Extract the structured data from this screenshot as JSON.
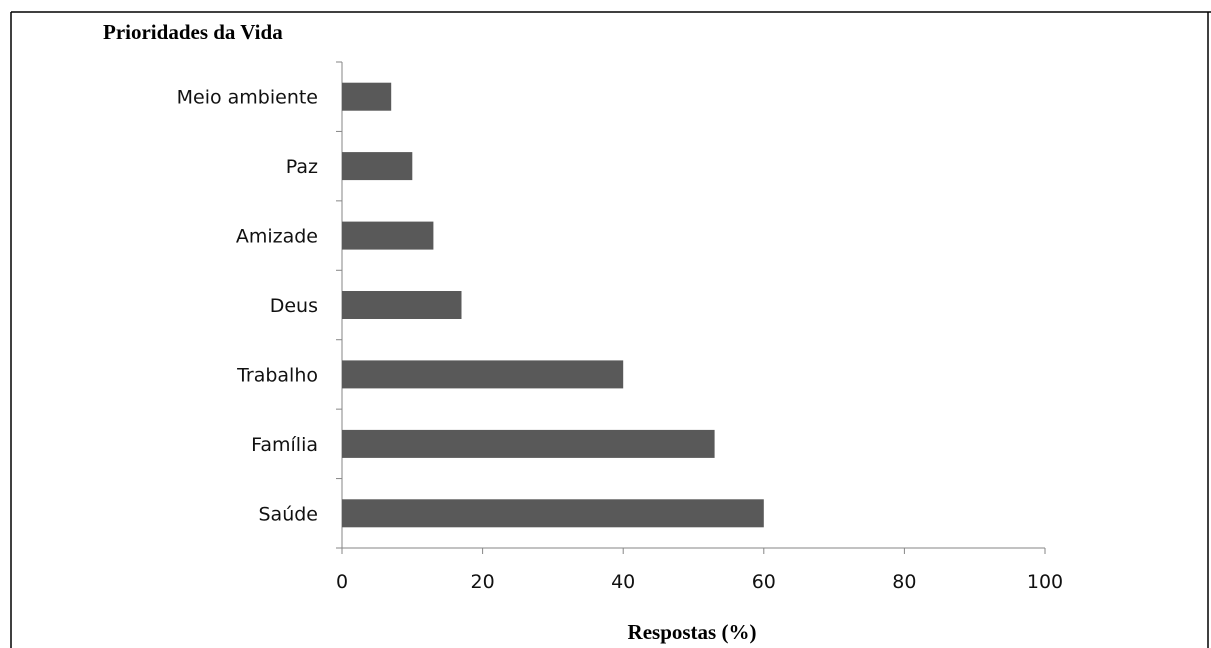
{
  "chart_data": {
    "type": "bar",
    "orientation": "horizontal",
    "title": "Prioridades da Vida",
    "xlabel": "Respostas (%)",
    "ylabel": "",
    "categories": [
      "Meio ambiente",
      "Paz",
      "Amizade",
      "Deus",
      "Trabalho",
      "Família",
      "Saúde"
    ],
    "values": [
      7,
      10,
      13,
      17,
      40,
      53,
      60
    ],
    "xlim": [
      0,
      100
    ],
    "xticks": [
      0,
      20,
      40,
      60,
      80,
      100
    ],
    "grid": false,
    "legend": "none",
    "bar_color": "#595959"
  }
}
